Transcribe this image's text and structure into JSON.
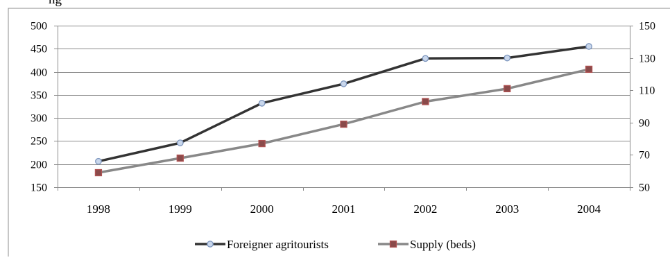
{
  "top_fragment": "ng",
  "chart_data": {
    "type": "line",
    "categories": [
      "1998",
      "1999",
      "2000",
      "2001",
      "2002",
      "2003",
      "2004"
    ],
    "series": [
      {
        "name": "Foreigner agritourists",
        "axis": "left",
        "color": "#333333",
        "marker": "circle",
        "values": [
          206,
          246,
          332,
          374,
          429,
          430,
          455
        ]
      },
      {
        "name": "Supply (beds)",
        "axis": "right",
        "color": "#888888",
        "marker": "square",
        "values": [
          59,
          68,
          77,
          89,
          103,
          111,
          123
        ]
      }
    ],
    "y_left": {
      "min": 150,
      "max": 500,
      "step": 50,
      "ticks": [
        "150",
        "200",
        "250",
        "300",
        "350",
        "400",
        "450",
        "500"
      ]
    },
    "y_right": {
      "min": 50,
      "max": 150,
      "step": 20,
      "ticks": [
        "50",
        "70",
        "90",
        "110",
        "130",
        "150"
      ]
    },
    "grid": true,
    "legend_position": "bottom"
  }
}
